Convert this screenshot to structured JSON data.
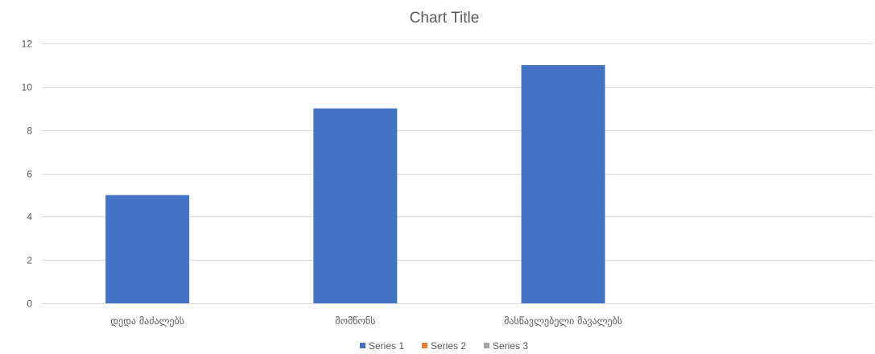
{
  "chart_data": {
    "type": "bar",
    "title": "Chart Title",
    "xlabel": "",
    "ylabel": "",
    "categories": [
      "დედა მაძალებს",
      "მომწონს",
      "მასწავლებელი მავალებს"
    ],
    "series": [
      {
        "name": "Series 1",
        "color": "#4472c4",
        "values": [
          5,
          9,
          11
        ]
      },
      {
        "name": "Series 2",
        "color": "#ed7d31",
        "values": [
          null,
          null,
          null
        ]
      },
      {
        "name": "Series 3",
        "color": "#a5a5a5",
        "values": [
          null,
          null,
          null
        ]
      }
    ],
    "ylim": [
      0,
      12
    ],
    "yticks": [
      0,
      2,
      4,
      6,
      8,
      10,
      12
    ],
    "category_slots": 4,
    "grid": true,
    "legend_position": "bottom"
  }
}
